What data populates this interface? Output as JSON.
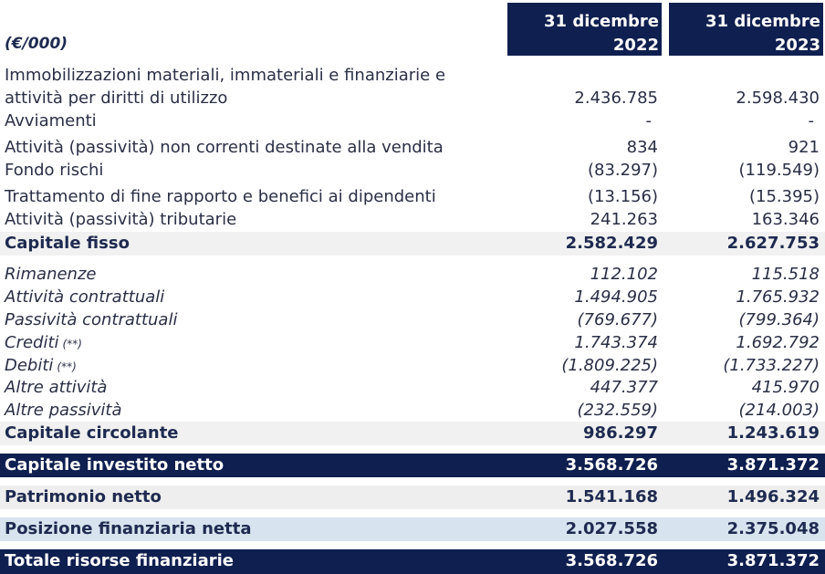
{
  "header": {
    "unit": "(€/000)",
    "col1": {
      "line1": "31 dicembre",
      "line2": "2022"
    },
    "col2": {
      "line1": "31 dicembre",
      "line2": "2023"
    }
  },
  "rows": [
    {
      "label_line1": "Immobilizzazioni materiali, immateriali e finanziarie e",
      "label": "attività per diritti di utilizzo",
      "v2022": "2.436.785",
      "v2023": "2.598.430"
    },
    {
      "label": "Avviamenti",
      "v2022": "-",
      "v2023": "-"
    },
    {
      "label": "Attività (passività) non correnti destinate alla vendita",
      "v2022": "834",
      "v2023": "921"
    },
    {
      "label": "Fondo rischi",
      "v2022": "(83.297)",
      "v2023": "(119.549)"
    },
    {
      "label": "Trattamento di fine rapporto e benefici ai dipendenti",
      "v2022": "(13.156)",
      "v2023": "(15.395)"
    },
    {
      "label": "Attività (passività) tributarie",
      "v2022": "241.263",
      "v2023": "163.346"
    },
    {
      "label": "Capitale fisso",
      "v2022": "2.582.429",
      "v2023": "2.627.753"
    },
    {
      "label": "Rimanenze",
      "v2022": "112.102",
      "v2023": "115.518"
    },
    {
      "label": "Attività contrattuali",
      "v2022": "1.494.905",
      "v2023": "1.765.932"
    },
    {
      "label": "Passività contrattuali",
      "v2022": "(769.677)",
      "v2023": "(799.364)"
    },
    {
      "label": "Crediti",
      "note": "(**)",
      "v2022": "1.743.374",
      "v2023": "1.692.792"
    },
    {
      "label": "Debiti",
      "note": "(**)",
      "v2022": "(1.809.225)",
      "v2023": "(1.733.227)"
    },
    {
      "label": "Altre attività",
      "v2022": "447.377",
      "v2023": "415.970"
    },
    {
      "label": "Altre passività",
      "v2022": "(232.559)",
      "v2023": "(214.003)"
    },
    {
      "label": "Capitale circolante",
      "v2022": "986.297",
      "v2023": "1.243.619"
    },
    {
      "label": "Capitale investito netto",
      "v2022": "3.568.726",
      "v2023": "3.871.372"
    },
    {
      "label": "Patrimonio netto",
      "v2022": "1.541.168",
      "v2023": "1.496.324"
    },
    {
      "label": "Posizione finanziaria netta",
      "v2022": "2.027.558",
      "v2023": "2.375.048"
    },
    {
      "label": "Totale risorse finanziarie",
      "v2022": "3.568.726",
      "v2023": "3.871.372"
    }
  ]
}
